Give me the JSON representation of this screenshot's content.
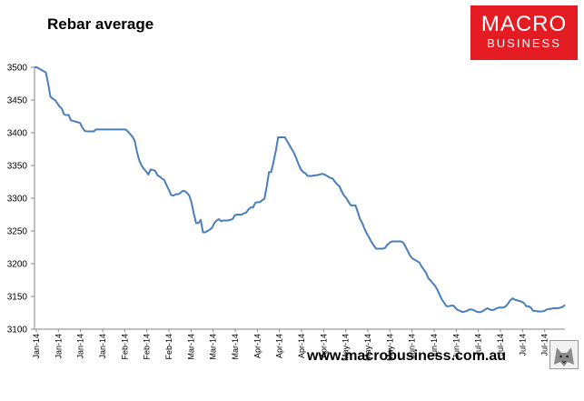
{
  "title": "Rebar average",
  "logo": {
    "line1": "MACRO",
    "line2": "BUSINESS"
  },
  "footer_url": "www.macrobusiness.com.au",
  "icons": {
    "logo": "macrobusiness-logo",
    "wolf": "wolf-icon"
  },
  "colors": {
    "line": "#4a7ebb",
    "logo_bg": "#e31b23",
    "axis": "#868686"
  },
  "chart_data": {
    "type": "line",
    "title": "Rebar average",
    "xlabel": "",
    "ylabel": "",
    "ylim": [
      3100,
      3500
    ],
    "yticks": [
      3100,
      3150,
      3200,
      3250,
      3300,
      3350,
      3400,
      3450,
      3500
    ],
    "xtick_labels": [
      "Jan-14",
      "Jan-14",
      "Jan-14",
      "Jan-14",
      "Feb-14",
      "Feb-14",
      "Feb-14",
      "Mar-14",
      "Mar-14",
      "Mar-14",
      "Apr-14",
      "Apr-14",
      "Apr-14",
      "Apr-14",
      "May-14",
      "May-14",
      "May-14",
      "Jun-14",
      "Jun-14",
      "Jun-14",
      "Jul-14",
      "Jul-14",
      "Jul-14",
      "Jul-14"
    ],
    "grid": false,
    "legend": "none",
    "series": [
      {
        "values": [
          3500,
          3500,
          3498,
          3496,
          3494,
          3492,
          3475,
          3455,
          3452,
          3450,
          3445,
          3440,
          3437,
          3428,
          3427,
          3427,
          3419,
          3418,
          3417,
          3416,
          3415,
          3408,
          3403,
          3402,
          3402,
          3402,
          3402,
          3405,
          3405,
          3405,
          3405,
          3405,
          3405,
          3405,
          3405,
          3405,
          3405,
          3405,
          3405,
          3405,
          3405,
          3402,
          3398,
          3394,
          3388,
          3371,
          3358,
          3350,
          3345,
          3341,
          3336,
          3344,
          3343,
          3342,
          3335,
          3333,
          3330,
          3328,
          3320,
          3313,
          3305,
          3304,
          3306,
          3306,
          3308,
          3311,
          3311,
          3308,
          3304,
          3293,
          3276,
          3262,
          3262,
          3267,
          3248,
          3248,
          3250,
          3252,
          3255,
          3262,
          3266,
          3268,
          3265,
          3266,
          3266,
          3266,
          3267,
          3268,
          3274,
          3275,
          3275,
          3275,
          3277,
          3278,
          3283,
          3286,
          3286,
          3293,
          3294,
          3294,
          3297,
          3299,
          3318,
          3340,
          3340,
          3356,
          3372,
          3393,
          3393,
          3393,
          3393,
          3387,
          3381,
          3375,
          3369,
          3361,
          3352,
          3344,
          3340,
          3338,
          3334,
          3334,
          3334,
          3335,
          3335,
          3336,
          3337,
          3337,
          3335,
          3333,
          3331,
          3330,
          3325,
          3321,
          3318,
          3310,
          3304,
          3300,
          3294,
          3289,
          3289,
          3289,
          3279,
          3268,
          3262,
          3253,
          3246,
          3240,
          3233,
          3228,
          3223,
          3223,
          3223,
          3223,
          3224,
          3229,
          3232,
          3234,
          3234,
          3234,
          3234,
          3234,
          3232,
          3226,
          3219,
          3212,
          3208,
          3206,
          3204,
          3202,
          3196,
          3191,
          3186,
          3178,
          3174,
          3170,
          3166,
          3160,
          3152,
          3145,
          3140,
          3135,
          3135,
          3136,
          3136,
          3132,
          3129,
          3128,
          3126,
          3127,
          3128,
          3130,
          3130,
          3129,
          3127,
          3126,
          3126,
          3128,
          3130,
          3132,
          3130,
          3129,
          3130,
          3132,
          3133,
          3133,
          3133,
          3135,
          3139,
          3144,
          3147,
          3145,
          3144,
          3143,
          3142,
          3140,
          3135,
          3135,
          3133,
          3128,
          3128,
          3127,
          3127,
          3127,
          3128,
          3130,
          3131,
          3131,
          3132,
          3132,
          3132,
          3133,
          3134,
          3137
        ]
      }
    ]
  }
}
